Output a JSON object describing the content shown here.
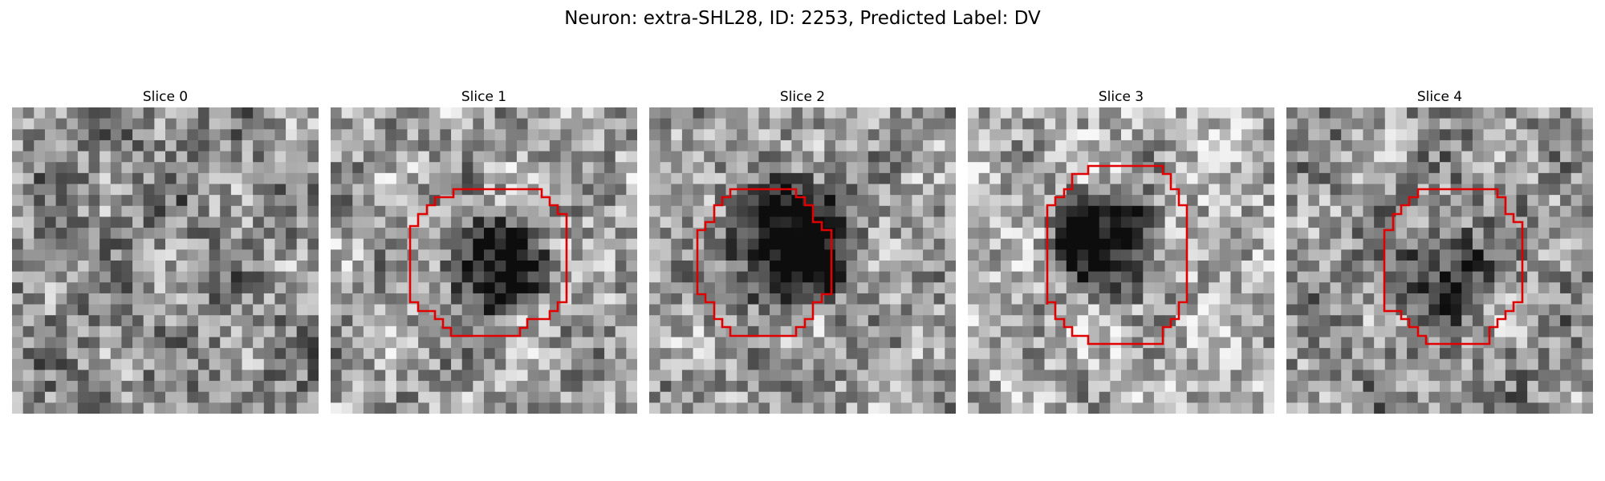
{
  "figure": {
    "title": "Neuron: extra-SHL28, ID: 2253, Predicted Label: DV"
  },
  "panels": [
    {
      "label": "Slice 0"
    },
    {
      "label": "Slice 1"
    },
    {
      "label": "Slice 2"
    },
    {
      "label": "Slice 3"
    },
    {
      "label": "Slice 4"
    }
  ],
  "colors": {
    "contour": "#e00000",
    "background": "#ffffff"
  }
}
